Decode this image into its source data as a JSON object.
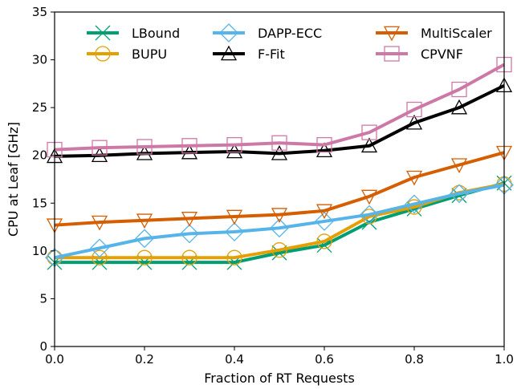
{
  "chart_data": {
    "type": "line",
    "xlabel": "Fraction of RT Requests",
    "ylabel": "CPU at Leaf [GHz]",
    "xlim": [
      0.0,
      1.0
    ],
    "ylim": [
      0,
      35
    ],
    "xticks": [
      "0.0",
      "0.2",
      "0.4",
      "0.6",
      "0.8",
      "1.0"
    ],
    "yticks": [
      "0",
      "5",
      "10",
      "15",
      "20",
      "25",
      "30",
      "35"
    ],
    "grid": false,
    "legend_position": "top",
    "x": [
      0.0,
      0.1,
      0.2,
      0.3,
      0.4,
      0.5,
      0.6,
      0.7,
      0.8,
      0.9,
      1.0
    ],
    "series": [
      {
        "name": "LBound",
        "color": "#009e73",
        "marker": "x-marker",
        "values": [
          8.8,
          8.8,
          8.8,
          8.8,
          8.8,
          9.8,
          10.6,
          13.0,
          14.4,
          15.8,
          17.1
        ]
      },
      {
        "name": "BUPU",
        "color": "#e69f00",
        "marker": "circle",
        "values": [
          9.3,
          9.3,
          9.3,
          9.3,
          9.3,
          10.1,
          11.0,
          13.6,
          14.6,
          16.1,
          17.0
        ]
      },
      {
        "name": "DAPP-ECC",
        "color": "#56b4e9",
        "marker": "diamond",
        "values": [
          9.3,
          10.3,
          11.3,
          11.8,
          12.0,
          12.4,
          13.1,
          13.8,
          14.9,
          16.0,
          16.9
        ]
      },
      {
        "name": "F-Fit",
        "color": "#000000",
        "marker": "triangle-up",
        "values": [
          19.9,
          20.0,
          20.2,
          20.3,
          20.4,
          20.2,
          20.5,
          21.0,
          23.4,
          25.0,
          27.3
        ]
      },
      {
        "name": "MultiScaler",
        "color": "#d55e00",
        "marker": "triangle-down",
        "values": [
          12.7,
          13.0,
          13.2,
          13.4,
          13.6,
          13.8,
          14.2,
          15.7,
          17.7,
          19.0,
          20.3
        ]
      },
      {
        "name": "CPVNF",
        "color": "#cc79a7",
        "marker": "square",
        "values": [
          20.6,
          20.8,
          20.9,
          21.0,
          21.1,
          21.3,
          21.1,
          22.4,
          24.8,
          26.9,
          29.5
        ]
      }
    ]
  }
}
